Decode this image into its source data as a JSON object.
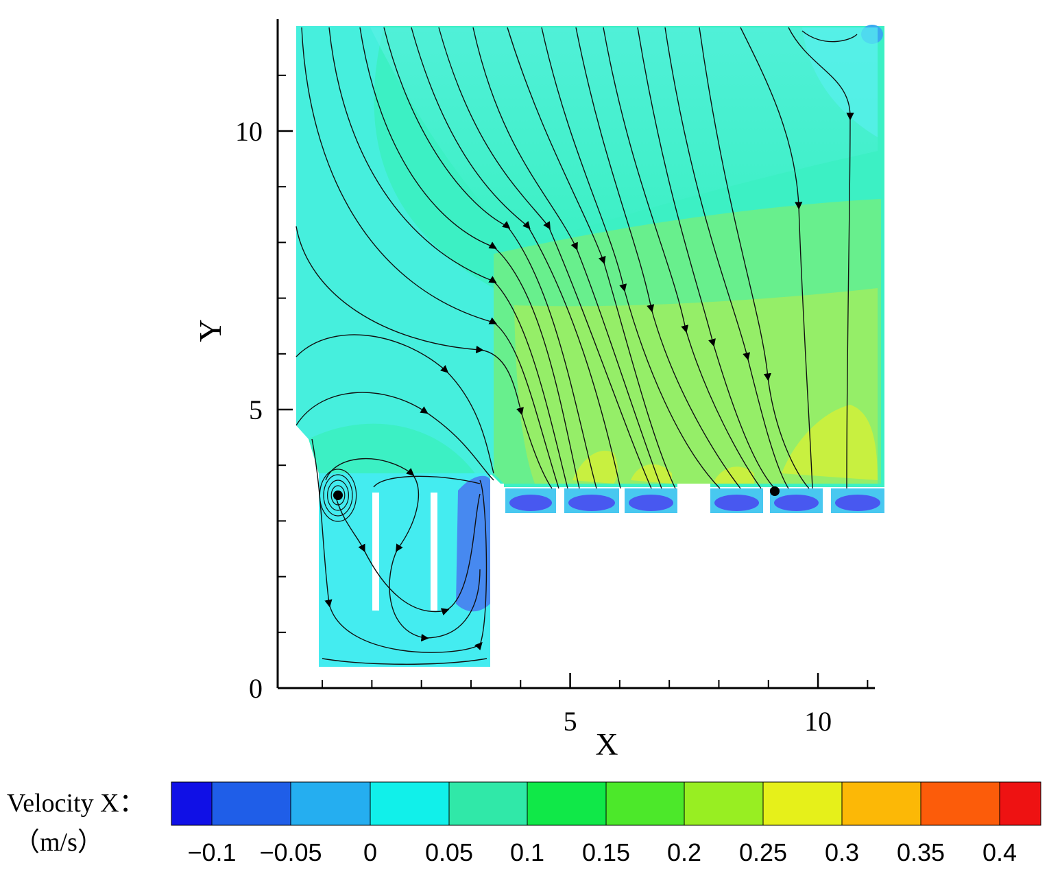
{
  "chart_data": {
    "type": "contour",
    "xlabel": "X",
    "ylabel": "Y",
    "xlim": [
      -0.9,
      11.2
    ],
    "ylim": [
      0,
      12
    ],
    "x_ticks": [
      {
        "value": 5,
        "label": "5"
      },
      {
        "value": 10,
        "label": "10"
      }
    ],
    "x_minor_ticks": [
      0,
      1,
      2,
      3,
      4,
      5,
      6,
      7,
      8,
      9,
      10,
      11
    ],
    "y_ticks": [
      {
        "value": 0,
        "label": "0"
      },
      {
        "value": 5,
        "label": "5"
      },
      {
        "value": 10,
        "label": "10"
      }
    ],
    "y_minor_ticks": [
      1,
      2,
      3,
      4,
      6,
      7,
      8,
      9,
      11
    ],
    "colorbar": {
      "title": "Velocity X：",
      "unit": "（m/s）",
      "labels": [
        "−0.1",
        "−0.05",
        "0",
        "0.05",
        "0.1",
        "0.15",
        "0.2",
        "0.25",
        "0.3",
        "0.35",
        "0.4"
      ],
      "colors": [
        "#1010e6",
        "#1f5ee8",
        "#25aef0",
        "#11f0ea",
        "#30e8a8",
        "#10e848",
        "#4ce82a",
        "#98ee22",
        "#e6f01a",
        "#fcb806",
        "#fc5c0a",
        "#ee1212"
      ]
    },
    "field_colors": {
      "background": "#3cf0c4",
      "basin": "#44ecf0",
      "upper_left": "#48eee2",
      "green_zone": "#80ee70",
      "yellow_zone": "#c8f040",
      "dark_spots": "#4858f0",
      "recirculation": "#4878f0",
      "baffle": "#ffffff"
    }
  }
}
